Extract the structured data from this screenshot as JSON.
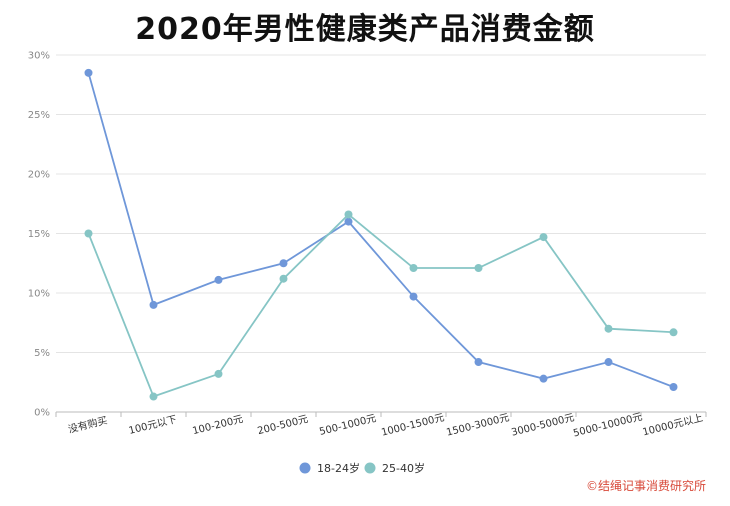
{
  "chart_data": {
    "type": "line",
    "title": "2020年男性健康类产品消费金额",
    "categories": [
      "没有购买",
      "100元以下",
      "100-200元",
      "200-500元",
      "500-1000元",
      "1000-1500元",
      "1500-3000元",
      "3000-5000元",
      "5000-10000元",
      "10000元以上"
    ],
    "y_ticks": [
      "0%",
      "5%",
      "10%",
      "15%",
      "20%",
      "25%",
      "30%"
    ],
    "ylim": [
      0,
      30
    ],
    "grid": true,
    "legend_position": "bottom-center",
    "series": [
      {
        "name": "18-24岁",
        "color": "#6f97d9",
        "values": [
          28.5,
          9.0,
          11.1,
          12.5,
          16.0,
          9.7,
          4.2,
          2.8,
          4.2,
          2.1
        ]
      },
      {
        "name": "25-40岁",
        "color": "#86c5c5",
        "values": [
          15.0,
          1.3,
          3.2,
          11.2,
          16.6,
          12.1,
          12.1,
          14.7,
          7.0,
          6.7
        ]
      }
    ]
  },
  "watermark": "©结绳记事消费研究所"
}
